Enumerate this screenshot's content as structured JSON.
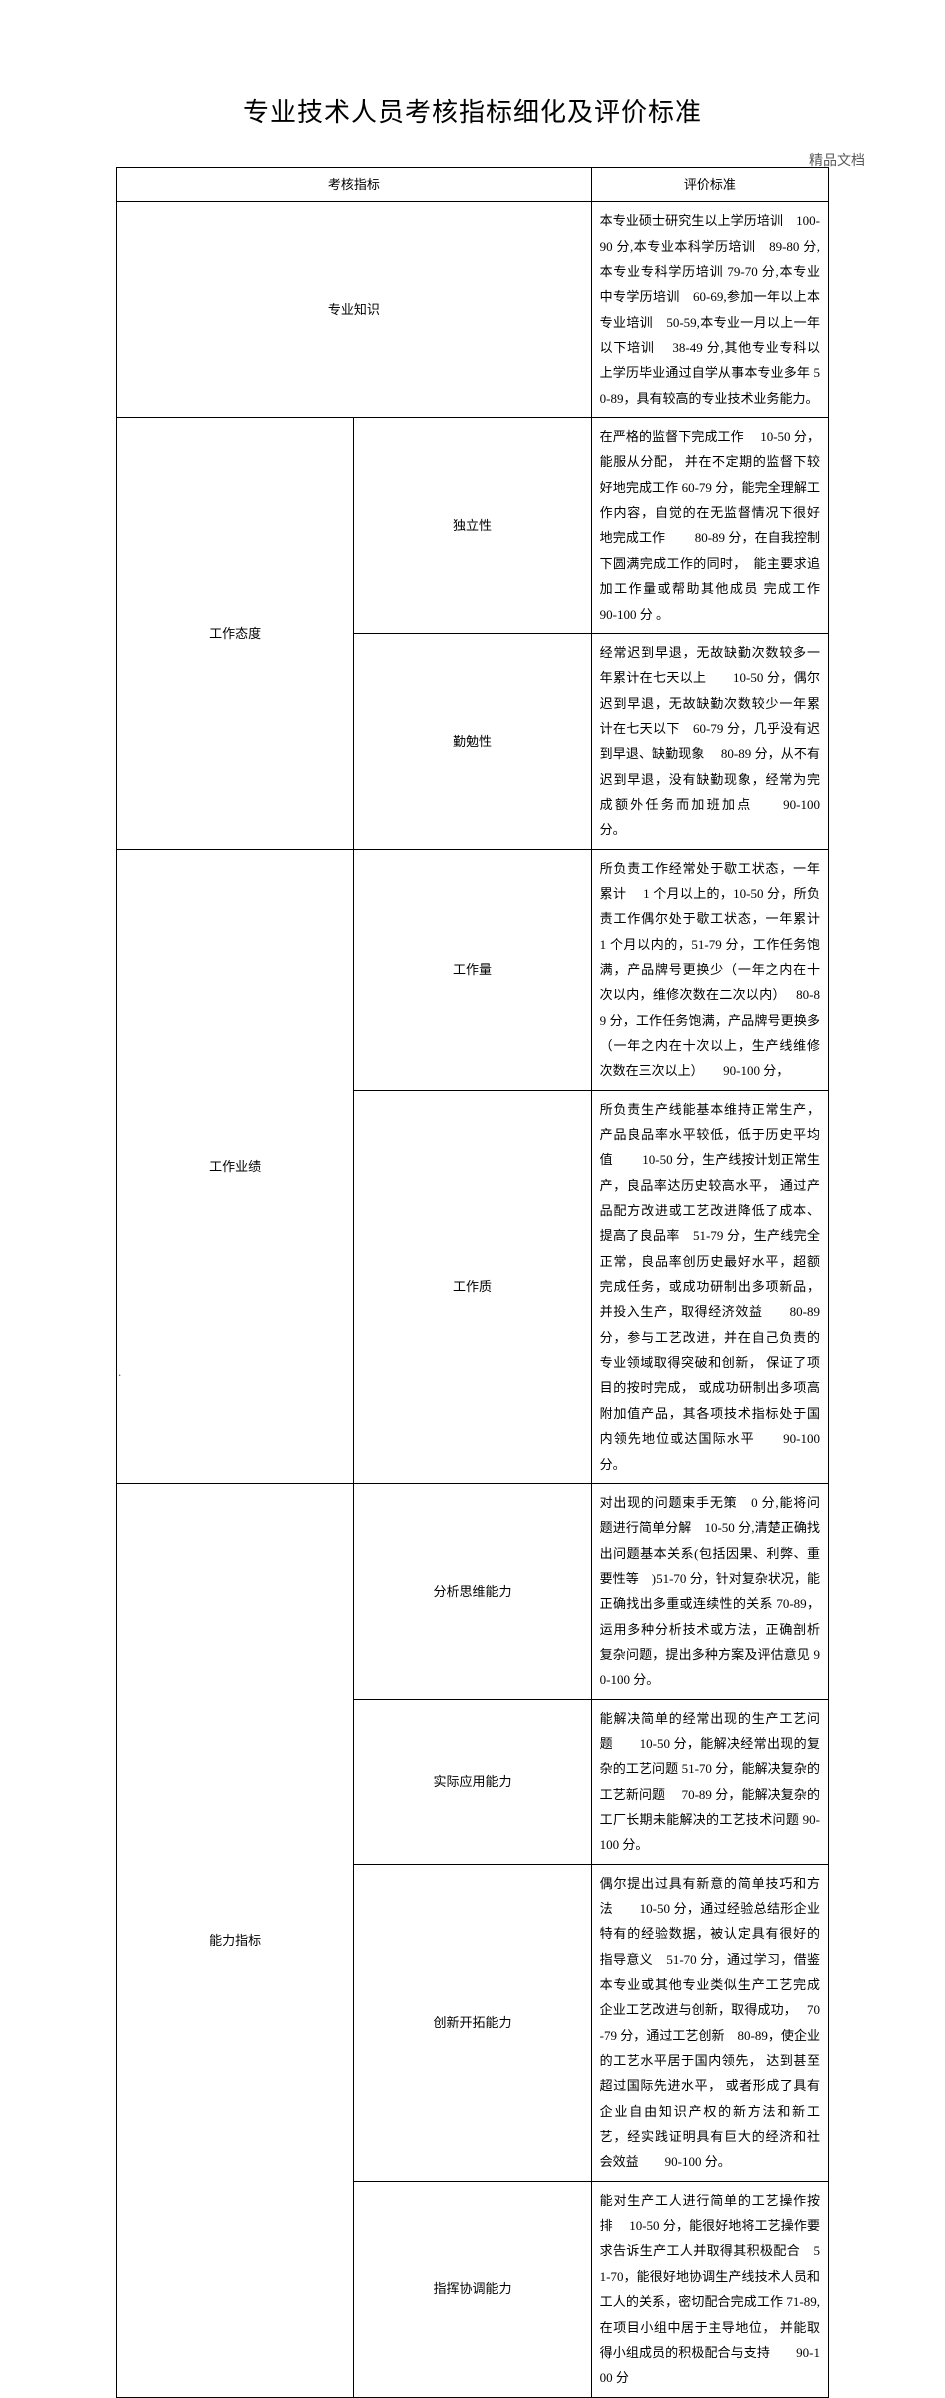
{
  "page": {
    "watermark": "精品文档",
    "title": "专业技术人员考核指标细化及评价标准",
    "footer_dot": "."
  },
  "headers": {
    "left": "考核指标",
    "right": "评价标准"
  },
  "rows": {
    "r1": {
      "sub": "专业知识",
      "content": "本专业硕士研究生以上学历培训　100-90 分,本专业本科学历培训　89-80 分,本专业专科学历培训 79-70 分,本专业中专学历培训　60-69,参加一年以上本专业培训　50-59,本专业一月以上一年以下培训　 38-49 分,其他专业专科以上学历毕业通过自学从事本专业多年 50-89，具有较高的专业技术业务能力。"
    },
    "r2": {
      "group": "工作态度",
      "sub1": "独立性",
      "content1": "在严格的监督下完成工作　 10-50 分，能服从分配， 并在不定期的监督下较好地完成工作 60-79 分，能完全理解工作内容，自觉的在无监督情况下很好地完成工作　　 80-89 分，在自我控制下圆满完成工作的同时，　能主要求追加工作量或帮助其他成员 完成工作　　90-100 分 。",
      "sub2": "勤勉性",
      "content2": "经常迟到早退，无故缺勤次数较多一年累计在七天以上　　10-50 分，偶尔迟到早退，无故缺勤次数较少一年累计在七天以下　60-79 分，几乎没有迟到早退、缺勤现象　 80-89 分，从不有迟到早退，没有缺勤现象，经常为完成额外任务而加班加点　　90-100 分。"
    },
    "r3": {
      "group": "工作业绩",
      "sub1": "工作量",
      "content1": "所负责工作经常处于歇工状态，一年累计　 1 个月以上的，10-50 分，所负责工作偶尔处于歇工状态，一年累计　1 个月以内的，51-79 分，工作任务饱满，产品牌号更换少（一年之内在十次以内，维修次数在二次以内）　 80-89 分，工作任务饱满，产品牌号更换多（一年之内在十次以上，生产线维修次数在三次以上）　　90-100 分，",
      "sub2": "工作质",
      "content2": "所负责生产线能基本维持正常生产，产品良品率水平较低，低于历史平均值　　 10-50 分，生产线按计划正常生产，良品率达历史较高水平， 通过产品配方改进或工艺改进降低了成本、提高了良品率　51-79 分，生产线完全正常，良品率创历史最好水平，超额完成任务，或成功研制出多项新品，并投入生产，取得经济效益　　80-89 分，参与工艺改进，并在自己负责的专业领域取得突破和创新，  保证了项目的按时完成，  或成功研制出多项高附加值产品，其各项技术指标处于国内领先地位或达国际水平　　90-100 分。"
    },
    "r4": {
      "group": "能力指标",
      "sub1": "分析思维能力",
      "content1": "对出现的问题束手无策　0 分,能将问题进行简单分解　10-50 分,清楚正确找出问题基本关系(包括因果、利弊、重要性等　)51-70 分，针对复杂状况，能正确找出多重或连续性的关系 70-89，运用多种分析技术或方法，正确剖析复杂问题，提出多种方案及评估意见 90-100 分。",
      "sub2": "实际应用能力",
      "content2": "能解决简单的经常出现的生产工艺问题　　10-50 分，能解决经常出现的复杂的工艺问题 51-70 分，能解决复杂的工艺新问题 　70-89 分，能解决复杂的工厂长期未能解决的工艺技术问题 90-100 分。",
      "sub3": "创新开拓能力",
      "content3": "偶尔提出过具有新意的简单技巧和方法　　10-50 分，通过经验总结形企业特有的经验数据，被认定具有很好的指导意义　51-70 分，通过学习，借鉴本专业或其他专业类似生产工艺完成企业工艺改进与创新，取得成功，　 70-79 分，通过工艺创新　80-89，使企业的工艺水平居于国内领先，  达到甚至超过国际先进水平，  或者形成了具有企业自由知识产权的新方法和新工艺，经实践证明具有巨大的经济和社会效益　　90-100 分。",
      "sub4": "指挥协调能力",
      "content4": "能对生产工人进行简单的工艺操作按排　 10-50 分，能很好地将工艺操作要求告诉生产工人并取得其积极配合　51-70，能很好地协调生产线技术人员和工人的关系，密切配合完成工作 71-89, 在项目小组中居于主导地位，  并能取得小组成员的积极配合与支持　　90-100 分"
    }
  }
}
